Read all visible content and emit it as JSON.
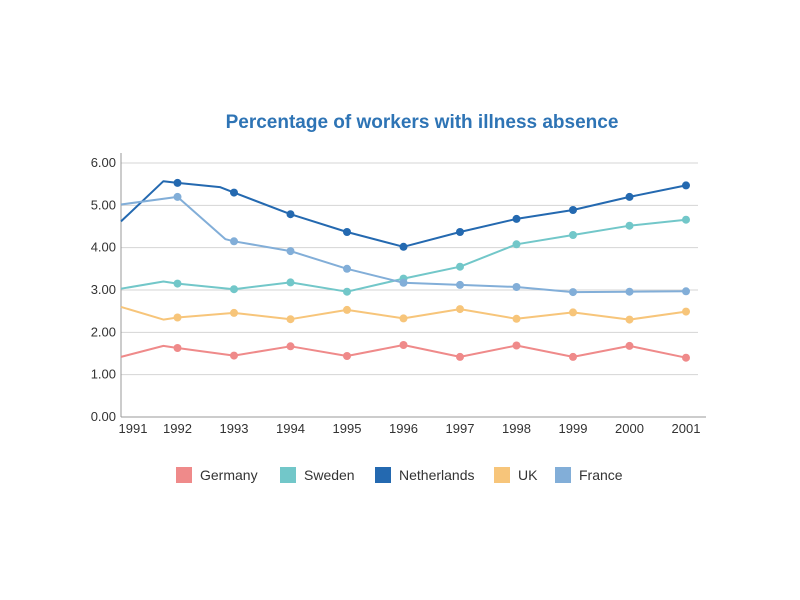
{
  "chart_data": {
    "type": "line",
    "title": "Percentage of workers with illness absence",
    "title_color": "#2e74b5",
    "xlabel": "",
    "ylabel": "",
    "x_ticks": [
      "1991",
      "1992",
      "1993",
      "1994",
      "1995",
      "1996",
      "1997",
      "1998",
      "1999",
      "2000",
      "2001"
    ],
    "y_ticks": [
      "0.00",
      "1.00",
      "2.00",
      "3.00",
      "4.00",
      "5.00",
      "6.00"
    ],
    "xlim": [
      1991,
      2001
    ],
    "ylim": [
      0,
      6
    ],
    "grid": "horizontal",
    "legend_position": "bottom",
    "series": [
      {
        "name": "Germany",
        "color": "#ef8a8a",
        "points": [
          [
            1991,
            1.42
          ],
          [
            1991.75,
            1.68
          ],
          [
            1992,
            1.63
          ],
          [
            1993,
            1.45
          ],
          [
            1994,
            1.67
          ],
          [
            1995,
            1.44
          ],
          [
            1996,
            1.7
          ],
          [
            1997,
            1.42
          ],
          [
            1998,
            1.69
          ],
          [
            1999,
            1.42
          ],
          [
            2000,
            1.68
          ],
          [
            2001,
            1.4
          ]
        ],
        "markers": [
          false,
          false,
          true,
          true,
          true,
          true,
          true,
          true,
          true,
          true,
          true,
          true
        ]
      },
      {
        "name": "Sweden",
        "color": "#72c7c9",
        "points": [
          [
            1991,
            3.03
          ],
          [
            1991.75,
            3.2
          ],
          [
            1992,
            3.15
          ],
          [
            1993,
            3.02
          ],
          [
            1994,
            3.18
          ],
          [
            1995,
            2.96
          ],
          [
            1996,
            3.27
          ],
          [
            1997,
            3.55
          ],
          [
            1998,
            4.08
          ],
          [
            1999,
            4.3
          ],
          [
            2000,
            4.52
          ],
          [
            2001,
            4.66
          ]
        ],
        "markers": [
          false,
          false,
          true,
          true,
          true,
          true,
          true,
          true,
          true,
          true,
          true,
          true
        ]
      },
      {
        "name": "Netherlands",
        "color": "#2469b0",
        "points": [
          [
            1991,
            4.62
          ],
          [
            1991.75,
            5.57
          ],
          [
            1992,
            5.53
          ],
          [
            1992.75,
            5.43
          ],
          [
            1993,
            5.3
          ],
          [
            1994,
            4.79
          ],
          [
            1995,
            4.37
          ],
          [
            1996,
            4.02
          ],
          [
            1997,
            4.37
          ],
          [
            1998,
            4.68
          ],
          [
            1999,
            4.89
          ],
          [
            2000,
            5.2
          ],
          [
            2001,
            5.47
          ]
        ],
        "markers": [
          false,
          false,
          true,
          false,
          true,
          true,
          true,
          true,
          true,
          true,
          true,
          true,
          true
        ]
      },
      {
        "name": "UK",
        "color": "#f7c57a",
        "points": [
          [
            1991,
            2.6
          ],
          [
            1991.75,
            2.3
          ],
          [
            1992,
            2.35
          ],
          [
            1993,
            2.46
          ],
          [
            1994,
            2.31
          ],
          [
            1995,
            2.53
          ],
          [
            1996,
            2.33
          ],
          [
            1997,
            2.55
          ],
          [
            1998,
            2.32
          ],
          [
            1999,
            2.47
          ],
          [
            2000,
            2.3
          ],
          [
            2001,
            2.49
          ]
        ],
        "markers": [
          false,
          false,
          true,
          true,
          true,
          true,
          true,
          true,
          true,
          true,
          true,
          true
        ]
      },
      {
        "name": "France",
        "color": "#82aed8",
        "points": [
          [
            1991,
            5.02
          ],
          [
            1992,
            5.2
          ],
          [
            1992.85,
            4.2
          ],
          [
            1993,
            4.15
          ],
          [
            1994,
            3.92
          ],
          [
            1995,
            3.5
          ],
          [
            1996,
            3.17
          ],
          [
            1997,
            3.12
          ],
          [
            1998,
            3.07
          ],
          [
            1999,
            2.95
          ],
          [
            2000,
            2.96
          ],
          [
            2001,
            2.97
          ]
        ],
        "markers": [
          false,
          true,
          false,
          true,
          true,
          true,
          true,
          true,
          true,
          true,
          true,
          true
        ]
      }
    ]
  }
}
